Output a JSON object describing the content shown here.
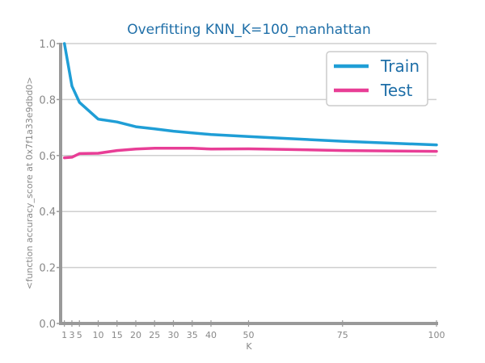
{
  "chart_data": {
    "type": "line",
    "title": "Overfitting KNN_K=100_manhattan",
    "xlabel": "K",
    "ylabel": "<function accuracy_score at 0x7f1a33e9dbd0>",
    "x": [
      1,
      3,
      5,
      10,
      15,
      20,
      25,
      30,
      35,
      40,
      50,
      60,
      75,
      90,
      100
    ],
    "xticks": [
      1,
      3,
      5,
      10,
      15,
      20,
      25,
      30,
      35,
      40,
      50,
      75,
      100
    ],
    "xlim": [
      0,
      100
    ],
    "ylim": [
      0.0,
      1.0
    ],
    "yticks": [
      "0.0",
      "0.2",
      "0.4",
      "0.6",
      "0.8",
      "1.0"
    ],
    "grid": true,
    "legend_position": "top-right",
    "series": [
      {
        "name": "Train",
        "color": "#1f9ed6",
        "values": [
          1.0,
          0.848,
          0.79,
          0.73,
          0.72,
          0.703,
          0.695,
          0.687,
          0.681,
          0.675,
          0.668,
          0.661,
          0.651,
          0.643,
          0.638
        ]
      },
      {
        "name": "Test",
        "color": "#e83e96",
        "values": [
          0.592,
          0.594,
          0.607,
          0.608,
          0.618,
          0.623,
          0.626,
          0.626,
          0.626,
          0.623,
          0.624,
          0.622,
          0.618,
          0.616,
          0.615
        ]
      }
    ]
  }
}
